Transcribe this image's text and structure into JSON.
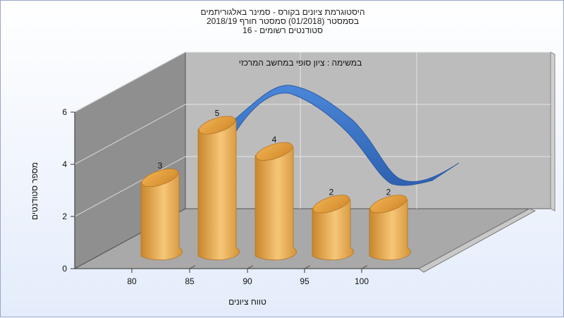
{
  "titles": {
    "line1": "היסטוגרמת ציונים בקורס - סמינר באלגוריתמים",
    "line2": "בסמסטר  (01/2018)  סמסטר חורף 2018/19",
    "line3": "סטודנטים רשומים - 16"
  },
  "chart_data": {
    "type": "bar",
    "title": "במשימה : ציון סופי במחשב המרכזי",
    "xlabel": "טווח ציונים",
    "ylabel": "מספר סטודנטים",
    "x_ticks": [
      "80",
      "85",
      "90",
      "95",
      "100"
    ],
    "y_ticks": [
      "0",
      "2",
      "4",
      "6"
    ],
    "ylim": [
      0,
      6
    ],
    "values": [
      3,
      5,
      4,
      2,
      2
    ],
    "data_labels": [
      "3",
      "5",
      "4",
      "2",
      "2"
    ],
    "grid": true,
    "colors": {
      "bar": "#e8a84a",
      "curve": "#3a72c4",
      "back_wall": "#bdbdbd",
      "side_wall": "#8c8c8c",
      "floor": "#a8a8a8"
    }
  }
}
